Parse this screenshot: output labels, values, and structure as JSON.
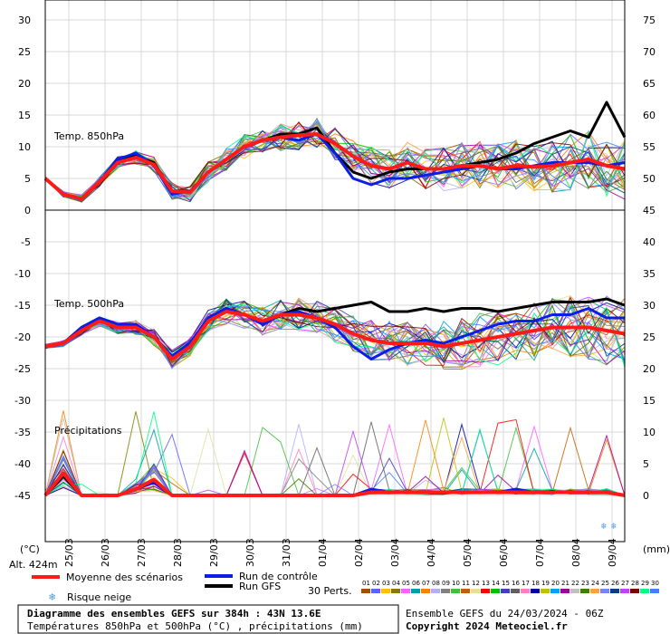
{
  "chart_data": {
    "type": "line",
    "title": "Diagramme des ensembles GEFS sur 384h : 43N 13.6E",
    "subtitle": "Températures 850hPa et 500hPa (°C) , précipitations (mm)",
    "x_tick_labels": [
      "25/03",
      "26/03",
      "27/03",
      "28/03",
      "29/03",
      "30/03",
      "31/03",
      "01/04",
      "02/04",
      "03/04",
      "04/04",
      "05/04",
      "06/04",
      "07/04",
      "08/04",
      "09/04"
    ],
    "y_left_ticks": [
      30,
      25,
      20,
      15,
      10,
      5,
      0,
      -5,
      -10,
      -15,
      -20,
      -25,
      -30,
      -35,
      -40,
      -45
    ],
    "y_right_ticks": [
      75,
      70,
      65,
      60,
      55,
      50,
      45,
      40,
      35,
      30,
      25,
      20,
      15,
      10,
      5,
      0
    ],
    "left_unit": "(°C)",
    "right_unit": "(mm)",
    "altitude_label": "Alt. 424m",
    "panel_labels": {
      "t850": "Temp. 850hPa",
      "t500": "Temp. 500hPa",
      "precip": "Précipitations"
    },
    "series": [
      {
        "name": "Moyenne des scénarios",
        "color": "#ff1a1a",
        "t850": [
          5,
          2.5,
          1.8,
          4.5,
          7.5,
          8.3,
          7.2,
          3,
          2.8,
          6,
          8,
          10,
          11,
          11.5,
          11.8,
          12,
          10.5,
          8.5,
          7,
          6.5,
          7.5,
          6.5,
          6.5,
          7,
          7,
          6.5,
          7,
          6.8,
          7,
          7.5,
          8,
          7,
          6.5
        ],
        "t500": [
          -21.5,
          -21,
          -19,
          -17.5,
          -18.5,
          -18.5,
          -20,
          -23.5,
          -21.5,
          -17.5,
          -16,
          -16.5,
          -17.5,
          -16.5,
          -16.5,
          -17,
          -18,
          -19.5,
          -20.5,
          -21,
          -21,
          -21,
          -21.5,
          -21,
          -20.5,
          -20,
          -19.5,
          -19,
          -18.5,
          -18.5,
          -18.5,
          -19,
          -19.5
        ],
        "precip": [
          0,
          3.5,
          0,
          0,
          0,
          1,
          2.5,
          0,
          0,
          0,
          0,
          0,
          0,
          0,
          0,
          0,
          0,
          0,
          0.5,
          0.5,
          0.5,
          0.5,
          0.5,
          0.5,
          0.5,
          0.5,
          0.5,
          0.5,
          0.5,
          0.5,
          0.5,
          0.5,
          0
        ]
      },
      {
        "name": "Run de contrôle",
        "color": "#0a1ee6",
        "t850": [
          5,
          2.5,
          1.8,
          4.5,
          8,
          9,
          7,
          2.5,
          3,
          6,
          8,
          10,
          11,
          11.5,
          11,
          12,
          9,
          5,
          4,
          5,
          5,
          5.5,
          6,
          6.5,
          7,
          6.5,
          6.5,
          7,
          7.5,
          7.5,
          7.5,
          7,
          7.5
        ],
        "t500": [
          -21.5,
          -21,
          -18.5,
          -17,
          -18,
          -18,
          -20,
          -23,
          -21,
          -17,
          -15.5,
          -16.5,
          -18,
          -16.5,
          -16,
          -17,
          -18.5,
          -21.5,
          -23.5,
          -22,
          -21,
          -20.5,
          -21,
          -20,
          -19,
          -18,
          -17.5,
          -17.5,
          -16.5,
          -16.5,
          -15.5,
          -17,
          -17
        ],
        "precip": [
          0,
          3.5,
          0,
          0,
          0,
          1,
          2,
          0,
          0,
          0,
          0,
          0,
          0,
          0,
          0,
          0,
          0,
          0,
          1,
          0.5,
          0.5,
          0.5,
          0.5,
          0.5,
          0.5,
          0.5,
          1,
          0.5,
          0.5,
          0.5,
          0.5,
          0.5,
          0
        ]
      },
      {
        "name": "Run GFS",
        "color": "#000000",
        "t850": [
          5,
          2.5,
          1.8,
          4.5,
          8,
          8.5,
          7.5,
          3,
          3,
          6,
          8,
          10,
          11,
          12,
          12,
          13,
          9,
          6,
          5,
          6,
          6.5,
          6.5,
          6.5,
          7,
          7.5,
          8,
          9,
          10.5,
          11.5,
          12.5,
          11.5,
          17,
          11.5
        ],
        "t500": [
          -21.5,
          -21,
          -18.5,
          -17,
          -18,
          -18.5,
          -20,
          -23,
          -21,
          -17,
          -15.5,
          -16.5,
          -17.5,
          -16.5,
          -15.5,
          -16,
          -15.5,
          -15,
          -14.5,
          -16,
          -16,
          -15.5,
          -16,
          -15.5,
          -15.5,
          -16,
          -15.5,
          -15,
          -14.5,
          -14.5,
          -14.5,
          -14,
          -15
        ],
        "precip": [
          0,
          3,
          0,
          0,
          0,
          1,
          2.5,
          0,
          0,
          0,
          0,
          0,
          0,
          0,
          0,
          0,
          0,
          0,
          0.5,
          0.5,
          0.5,
          0.5,
          0.5,
          0.5,
          0.5,
          0.5,
          0.5,
          0.5,
          0.5,
          0.5,
          0.5,
          0.5,
          0
        ]
      }
    ],
    "perturbation_colors": [
      "#a05000",
      "#6060ff",
      "#ffc000",
      "#808000",
      "#ff60ff",
      "#00a0a0",
      "#ff8000",
      "#b0b0ff",
      "#808080",
      "#40c040",
      "#c06000",
      "#e0e0a0",
      "#ff0000",
      "#00c000",
      "#4040c0",
      "#606060",
      "#ff80c0",
      "#0000a0",
      "#c0c000",
      "#00a0ff",
      "#a000a0",
      "#c0c0c0",
      "#408000",
      "#ffa040",
      "#8080ff",
      "#004080",
      "#c040ff",
      "#800000",
      "#00ff80",
      "#4080ff"
    ],
    "perturbation_numbers": [
      "01",
      "02",
      "03",
      "04",
      "05",
      "06",
      "07",
      "08",
      "09",
      "10",
      "11",
      "12",
      "13",
      "14",
      "15",
      "16",
      "17",
      "18",
      "19",
      "20",
      "21",
      "22",
      "23",
      "24",
      "25",
      "26",
      "27",
      "28",
      "29",
      "30"
    ],
    "legend": {
      "mean": "Moyenne des scénarios",
      "control": "Run de contrôle",
      "gfs": "Run GFS",
      "snow": "Risque neige",
      "perts": "30 Perts."
    },
    "footer": {
      "ensemble_info": "Ensemble GEFS du 24/03/2024 - 06Z",
      "copyright": "Copyright 2024 Meteociel.fr"
    }
  }
}
